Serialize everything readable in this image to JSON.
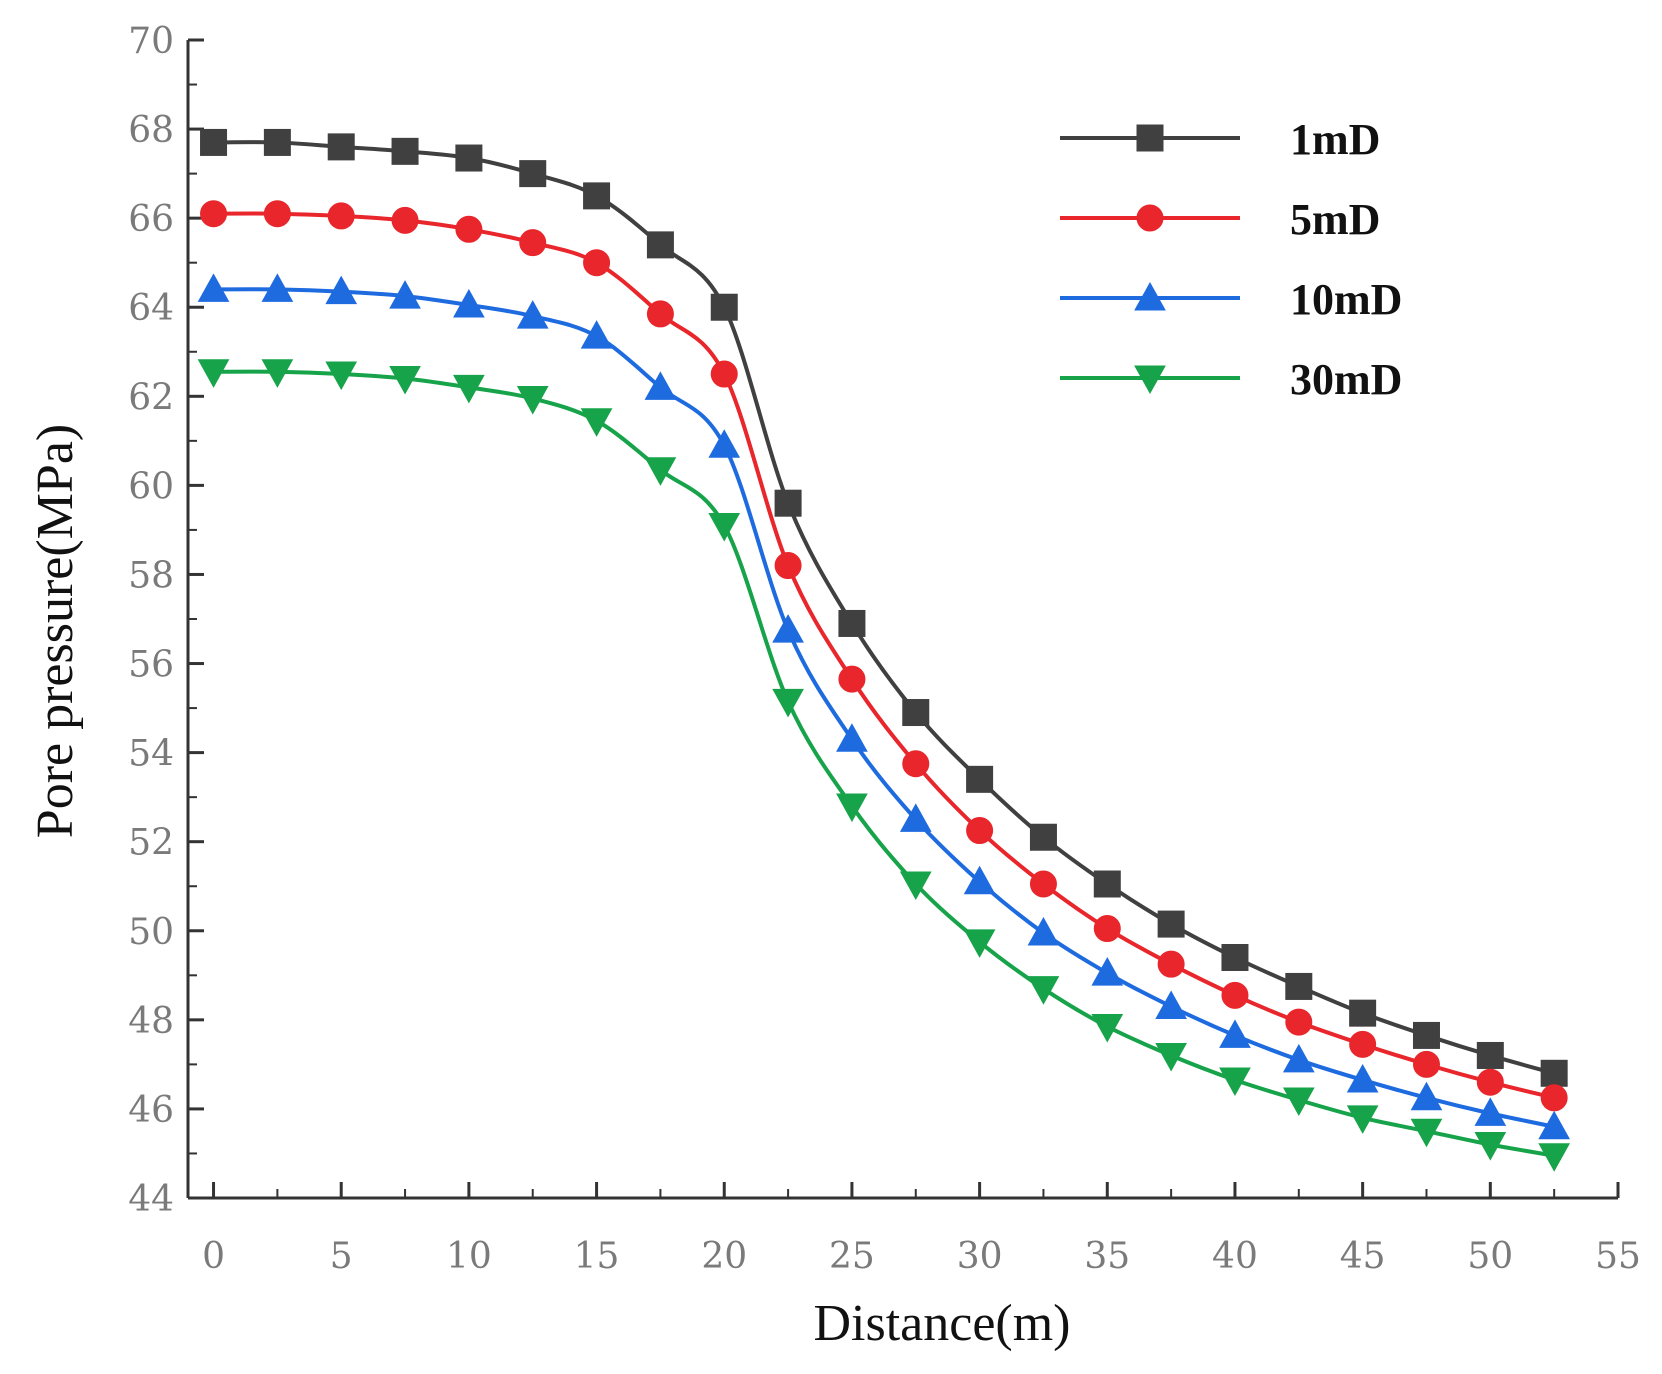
{
  "chart_data": {
    "type": "line",
    "title": "",
    "xlabel": "Distance(m)",
    "ylabel": "Pore pressure(MPa)",
    "xlim": [
      -1,
      55
    ],
    "ylim": [
      44,
      70
    ],
    "xticks": [
      0,
      5,
      10,
      15,
      20,
      25,
      30,
      35,
      40,
      45,
      50,
      55
    ],
    "yticks": [
      44,
      46,
      48,
      50,
      52,
      54,
      56,
      58,
      60,
      62,
      64,
      66,
      68,
      70
    ],
    "grid": false,
    "legend_position": "top-right",
    "x": [
      0,
      2.5,
      5,
      7.5,
      10,
      12.5,
      15,
      17.5,
      20,
      22.5,
      25,
      27.5,
      30,
      32.5,
      35,
      37.5,
      40,
      42.5,
      45,
      47.5,
      50,
      52.5
    ],
    "series": [
      {
        "name": "1mD",
        "color": "#404040",
        "marker": "square",
        "values": [
          67.7,
          67.7,
          67.6,
          67.5,
          67.35,
          67.0,
          66.5,
          65.4,
          64.0,
          59.6,
          56.9,
          54.9,
          53.4,
          52.1,
          51.05,
          50.15,
          49.4,
          48.75,
          48.15,
          47.65,
          47.2,
          46.8
        ]
      },
      {
        "name": "5mD",
        "color": "#e8262b",
        "marker": "circle",
        "values": [
          66.1,
          66.1,
          66.05,
          65.95,
          65.75,
          65.45,
          65.0,
          63.85,
          62.5,
          58.2,
          55.65,
          53.75,
          52.25,
          51.05,
          50.05,
          49.25,
          48.55,
          47.95,
          47.45,
          47.0,
          46.6,
          46.25
        ]
      },
      {
        "name": "10mD",
        "color": "#1e6be0",
        "marker": "triangle-up",
        "values": [
          64.4,
          64.4,
          64.35,
          64.25,
          64.05,
          63.8,
          63.35,
          62.2,
          60.9,
          56.75,
          54.3,
          52.5,
          51.1,
          49.95,
          49.05,
          48.3,
          47.65,
          47.1,
          46.65,
          46.25,
          45.9,
          45.6
        ]
      },
      {
        "name": "30mD",
        "color": "#16a34a",
        "marker": "triangle-down",
        "values": [
          62.55,
          62.55,
          62.5,
          62.4,
          62.2,
          61.95,
          61.45,
          60.35,
          59.1,
          55.15,
          52.8,
          51.05,
          49.75,
          48.7,
          47.85,
          47.2,
          46.65,
          46.2,
          45.8,
          45.5,
          45.2,
          44.95
        ]
      }
    ]
  }
}
